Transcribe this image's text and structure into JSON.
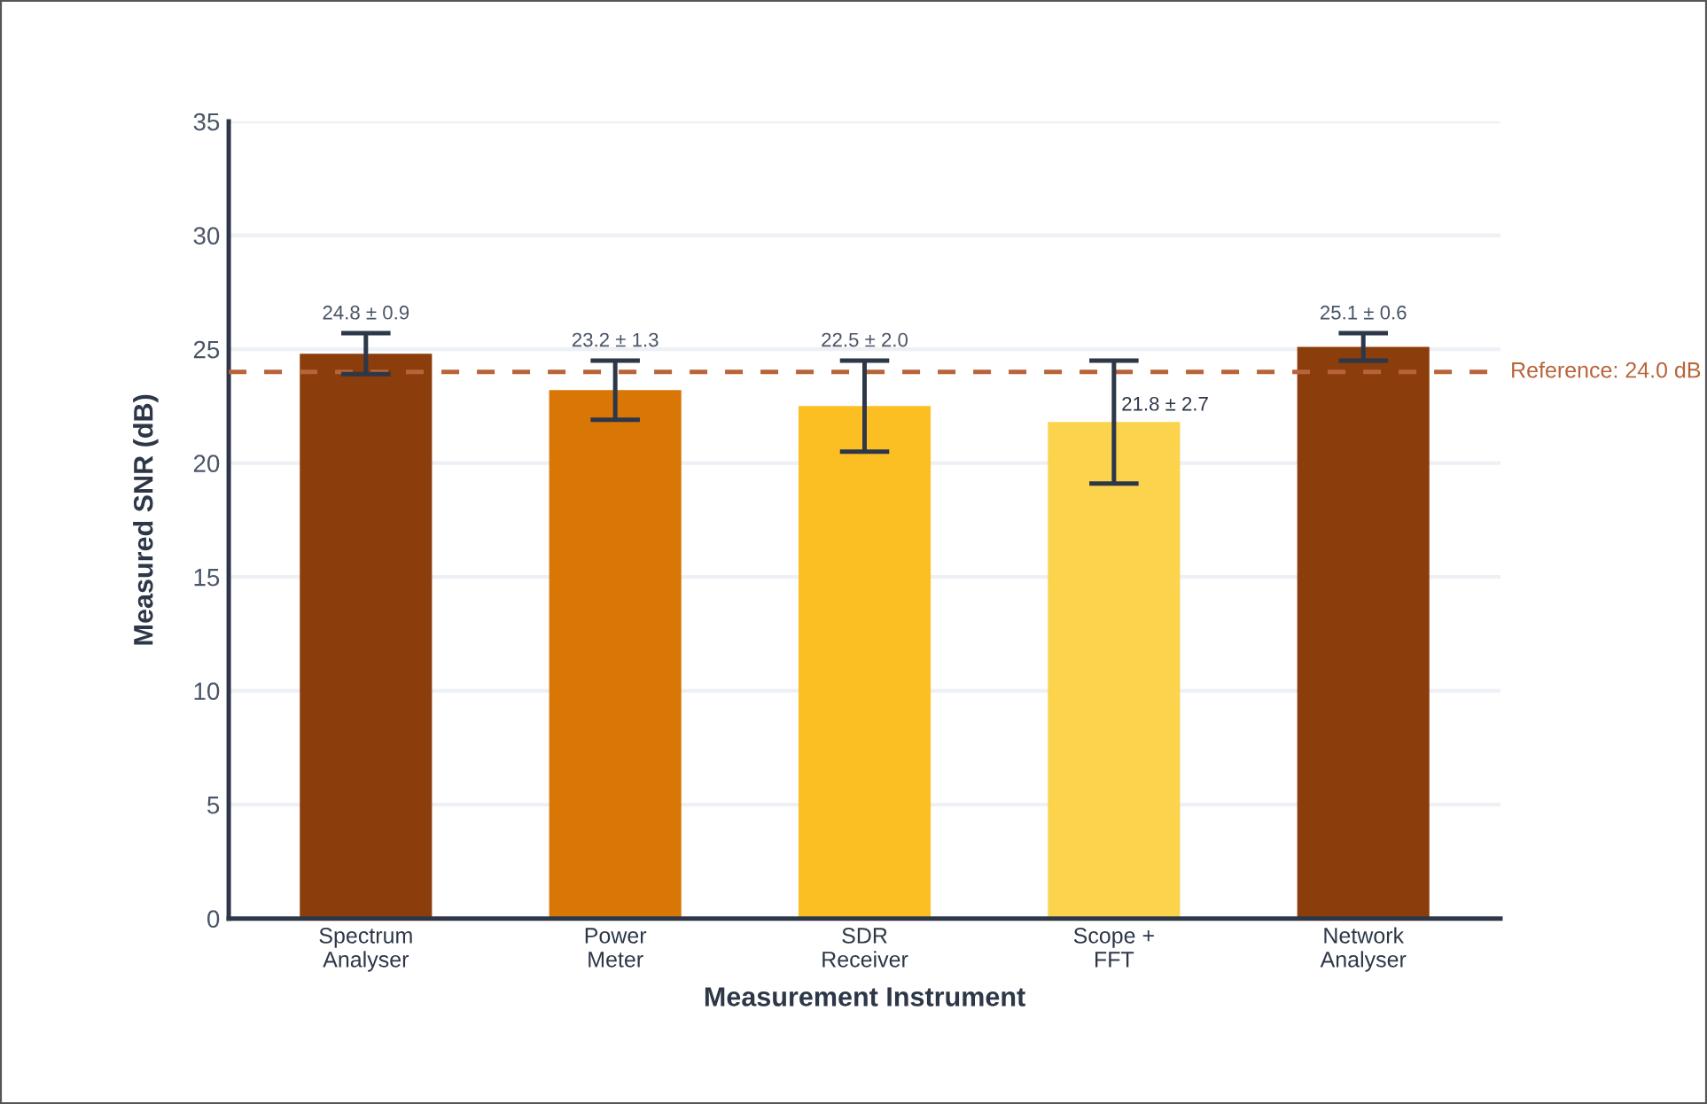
{
  "chart_data": {
    "type": "bar",
    "xlabel": "Measurement Instrument",
    "ylabel": "Measured SNR (dB)",
    "categories": [
      "Spectrum\nAnalyser",
      "Power\nMeter",
      "SDR\nReceiver",
      "Scope +\nFFT",
      "Network\nAnalyser"
    ],
    "values": [
      24.8,
      23.2,
      22.5,
      21.8,
      25.1
    ],
    "errors": [
      0.9,
      1.3,
      2.0,
      2.7,
      0.6
    ],
    "colors": [
      "#8b3d0c",
      "#d97706",
      "#fbbf24",
      "#fcd34d",
      "#8b3d0c"
    ],
    "value_labels": [
      "24.8 ± 0.9",
      "23.2 ± 1.3",
      "22.5 ± 2.0",
      "21.8 ± 2.7",
      "25.1 ± 0.6"
    ],
    "ylim": [
      0,
      35
    ],
    "yticks": [
      0,
      5,
      10,
      15,
      20,
      25,
      30,
      35
    ],
    "grid": "y",
    "ref_lines": [
      {
        "axis": "y",
        "value": 24.0,
        "label": "Reference: 24.0 dB",
        "color": "#b8643a",
        "line_style": "dashed"
      }
    ]
  }
}
